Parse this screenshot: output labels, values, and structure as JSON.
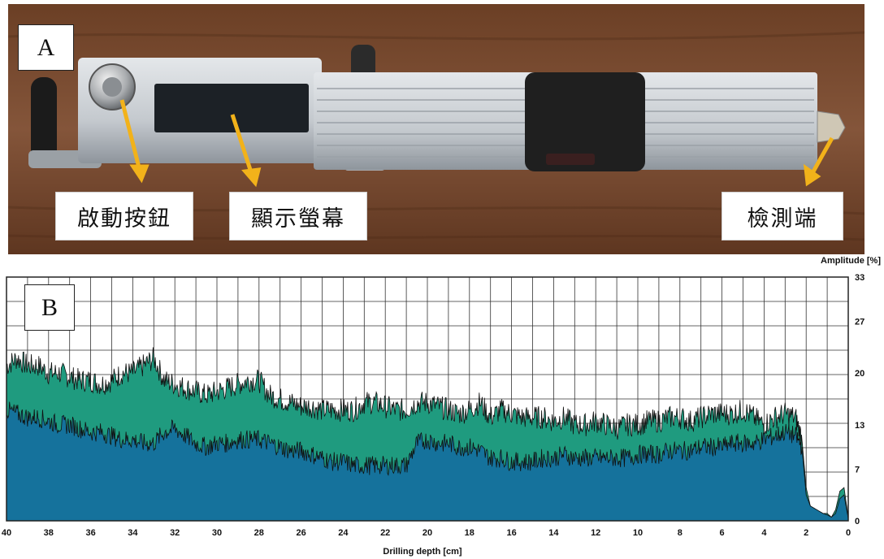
{
  "panels": [
    {
      "id": "A",
      "label": "A"
    },
    {
      "id": "B",
      "label": "B"
    }
  ],
  "photo": {
    "callouts": [
      {
        "text": "啟動按鈕"
      },
      {
        "text": "顯示螢幕"
      },
      {
        "text": "檢測端"
      }
    ],
    "colors": {
      "wood": "#7a4b2e",
      "aluminum": "#c9cdd1",
      "screen": "#1c2126",
      "arrow": "#f2b21a",
      "rubber": "#1a1a1a"
    }
  },
  "chart_data": {
    "type": "area",
    "title": "",
    "xlabel": "Drilling depth [cm]",
    "ylabel": "Amplitude [%]",
    "xlim": [
      40,
      0
    ],
    "ylim": [
      0,
      33
    ],
    "x_ticks": [
      40,
      38,
      36,
      34,
      32,
      30,
      28,
      26,
      24,
      22,
      20,
      18,
      16,
      14,
      12,
      10,
      8,
      6,
      4,
      2,
      0
    ],
    "y_ticks": [
      0,
      7,
      13,
      20,
      27,
      33
    ],
    "grid": true,
    "series": [
      {
        "name": "",
        "color": "#1f9b7f",
        "x": [
          40,
          39.5,
          39,
          38.5,
          38,
          37.5,
          37,
          36.5,
          36,
          35.5,
          35,
          34.5,
          34,
          33.5,
          33,
          32.5,
          32,
          31.5,
          31,
          30.5,
          30,
          29.5,
          29,
          28.5,
          28,
          27.5,
          27,
          26.5,
          26,
          25.5,
          25,
          24.5,
          24,
          23.5,
          23,
          22.5,
          22,
          21.5,
          21,
          20.5,
          20,
          19.5,
          19,
          18.5,
          18,
          17.5,
          17,
          16.5,
          16,
          15.5,
          15,
          14.5,
          14,
          13.5,
          13,
          12.5,
          12,
          11.5,
          11,
          10.5,
          10,
          9.5,
          9,
          8.5,
          8,
          7.5,
          7,
          6.5,
          6,
          5.5,
          5,
          4.5,
          4,
          3.5,
          3,
          2.5,
          2.2,
          2,
          1.8,
          1.5,
          1.2,
          1,
          0.8,
          0.6,
          0.4,
          0.2,
          0
        ],
        "values": [
          21,
          22,
          21,
          21,
          20,
          20,
          19.5,
          19,
          19,
          18.5,
          19,
          20,
          20,
          21,
          22,
          19,
          18.5,
          18,
          17.5,
          17,
          17.5,
          18,
          18.5,
          19,
          19,
          17,
          16.5,
          16,
          15.5,
          15.5,
          15,
          15,
          15,
          15,
          16,
          16,
          15.5,
          15,
          15,
          16,
          16,
          15.5,
          15,
          14.5,
          15,
          16,
          14,
          15,
          14.5,
          14,
          14,
          14,
          13.5,
          14,
          13,
          13,
          13.5,
          13,
          12.5,
          13,
          13,
          13.5,
          13.5,
          14,
          14,
          13.5,
          14,
          14.5,
          14.5,
          14.5,
          15,
          14,
          13,
          14,
          14.5,
          14,
          11,
          4.5,
          2,
          1.5,
          1,
          1,
          0.5,
          1.5,
          4,
          4.5,
          0.5
        ]
      },
      {
        "name": "",
        "color": "#15729c",
        "x": [
          40,
          39.5,
          39,
          38.5,
          38,
          37.5,
          37,
          36.5,
          36,
          35.5,
          35,
          34.5,
          34,
          33.5,
          33,
          32.5,
          32,
          31.5,
          31,
          30.5,
          30,
          29.5,
          29,
          28.5,
          28,
          27.5,
          27,
          26.5,
          26,
          25.5,
          25,
          24.5,
          24,
          23.5,
          23,
          22.5,
          22,
          21.5,
          21,
          20.5,
          20,
          19.5,
          19,
          18.5,
          18,
          17.5,
          17,
          16.5,
          16,
          15.5,
          15,
          14.5,
          14,
          13.5,
          13,
          12.5,
          12,
          11.5,
          11,
          10.5,
          10,
          9.5,
          9,
          8.5,
          8,
          7.5,
          7,
          6.5,
          6,
          5.5,
          5,
          4.5,
          4,
          3.5,
          3,
          2.5,
          2.2,
          2,
          1.8,
          1.5,
          1.2,
          1,
          0.8,
          0.6,
          0.4,
          0.2,
          0
        ],
        "values": [
          15,
          14.5,
          14,
          14,
          13.5,
          13,
          13,
          12.5,
          12,
          12,
          11.5,
          11,
          11,
          10.5,
          10.5,
          12,
          12.5,
          11.5,
          10.5,
          10,
          10.5,
          10.5,
          11,
          11,
          11,
          10.5,
          10,
          9.5,
          9.5,
          9,
          8.5,
          8,
          8,
          7.5,
          7.5,
          7.5,
          7.5,
          7.5,
          7.5,
          10.5,
          11,
          10.5,
          10.5,
          10,
          10,
          9.5,
          8.5,
          8.5,
          8,
          8,
          8,
          8.5,
          8.5,
          9,
          8.5,
          8.5,
          8.5,
          8.5,
          8.5,
          8.5,
          9,
          9,
          9,
          9.5,
          9.5,
          9.5,
          10,
          10,
          10,
          10.5,
          10.5,
          10.5,
          11,
          11.5,
          12,
          11.5,
          10,
          3.5,
          2,
          1.5,
          1,
          0.8,
          0.5,
          1,
          3,
          3.5,
          0.3
        ]
      }
    ]
  }
}
